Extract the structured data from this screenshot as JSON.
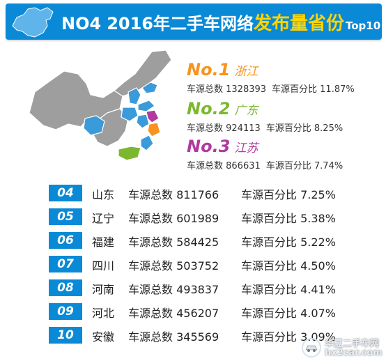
{
  "banner": {
    "no_label": "NO4",
    "title_prefix": "2016年二手车网络",
    "title_highlight": "发布量省份",
    "title_suffix": "Top10"
  },
  "map": {
    "colors": {
      "base": "#9e9e9e",
      "highlight": "#3b9ad9",
      "zhejiang": "#f7931e",
      "guangdong": "#7cb82f",
      "jiangsu": "#b03aa0"
    }
  },
  "top3": [
    {
      "rank": "No.1",
      "province": "浙江",
      "count_text": "车源总数 1328393",
      "pct_text": "车源百分比 11.87%",
      "color": "#f7931e"
    },
    {
      "rank": "No.2",
      "province": "广东",
      "count_text": "车源总数 924113",
      "pct_text": "车源百分比 8.25%",
      "color": "#7cb82f"
    },
    {
      "rank": "No.3",
      "province": "江苏",
      "count_text": "车源总数 866631",
      "pct_text": "车源百分比 7.74%",
      "color": "#b03aa0"
    }
  ],
  "list": [
    {
      "rank": "04",
      "province": "山东",
      "count_text": "车源总数 811766",
      "pct_text": "车源百分比 7.25%"
    },
    {
      "rank": "05",
      "province": "辽宁",
      "count_text": "车源总数 601989",
      "pct_text": "车源百分比 5.38%"
    },
    {
      "rank": "06",
      "province": "福建",
      "count_text": "车源总数 584425",
      "pct_text": "车源百分比 5.22%"
    },
    {
      "rank": "07",
      "province": "四川",
      "count_text": "车源总数 503752",
      "pct_text": "车源百分比 4.50%"
    },
    {
      "rank": "08",
      "province": "河南",
      "count_text": "车源总数 493837",
      "pct_text": "车源百分比 4.41%"
    },
    {
      "rank": "09",
      "province": "河北",
      "count_text": "车源总数 456207",
      "pct_text": "车源百分比 4.07%"
    },
    {
      "rank": "10",
      "province": "安徽",
      "count_text": "车源总数 345569",
      "pct_text": "车源百分比 3.09%"
    }
  ],
  "watermark": {
    "line1": "华夏二手车网",
    "line2": "hx2car.com"
  }
}
